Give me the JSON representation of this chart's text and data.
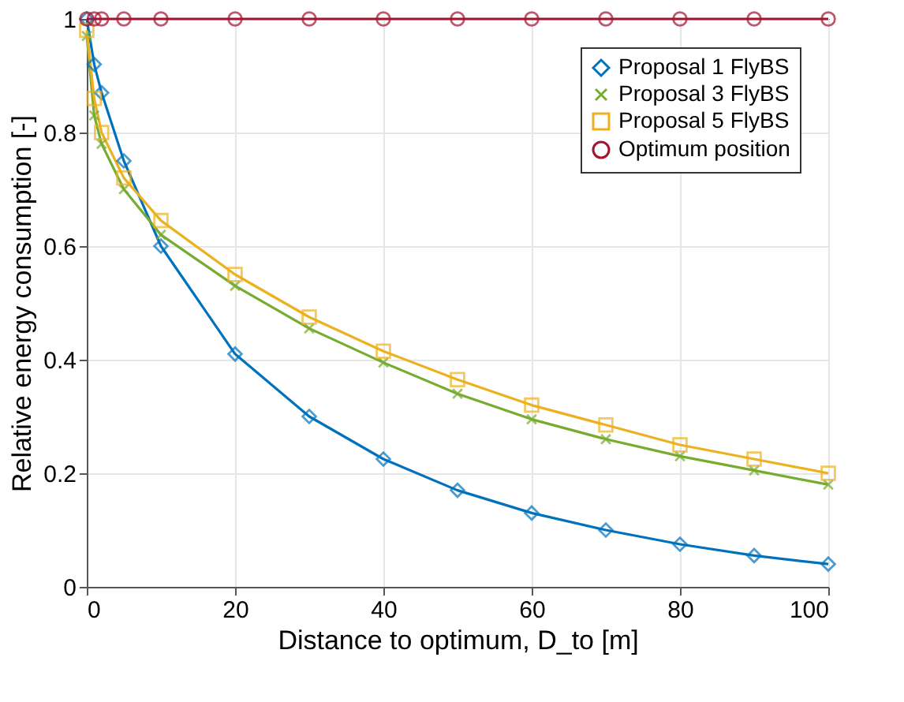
{
  "chart_data": {
    "type": "line",
    "xlabel": "Distance to optimum,  D_to [m]",
    "ylabel": "Relative energy consumption [-]",
    "x": [
      0,
      1,
      2,
      5,
      10,
      20,
      30,
      40,
      50,
      60,
      70,
      80,
      90,
      100
    ],
    "series": [
      {
        "name": "Proposal 1 FlyBS",
        "color": "#0072bd",
        "marker": "diamond",
        "values": [
          1.0,
          0.92,
          0.87,
          0.75,
          0.6,
          0.41,
          0.3,
          0.225,
          0.17,
          0.13,
          0.1,
          0.075,
          0.055,
          0.04
        ]
      },
      {
        "name": "Proposal 3 FlyBS",
        "color": "#77ac30",
        "marker": "cross",
        "values": [
          0.97,
          0.83,
          0.78,
          0.7,
          0.62,
          0.53,
          0.455,
          0.395,
          0.34,
          0.295,
          0.26,
          0.23,
          0.205,
          0.18
        ]
      },
      {
        "name": "Proposal 5 FlyBS",
        "color": "#edb120",
        "marker": "square",
        "values": [
          0.98,
          0.86,
          0.8,
          0.72,
          0.645,
          0.55,
          0.475,
          0.415,
          0.365,
          0.32,
          0.285,
          0.25,
          0.225,
          0.2
        ]
      },
      {
        "name": "Optimum position",
        "color": "#a2142f",
        "marker": "circle",
        "values": [
          1,
          1,
          1,
          1,
          1,
          1,
          1,
          1,
          1,
          1,
          1,
          1,
          1,
          1
        ]
      }
    ],
    "xlim": [
      0,
      100
    ],
    "ylim": [
      0,
      1
    ],
    "xticks": [
      0,
      20,
      40,
      60,
      80,
      100
    ],
    "yticks": [
      0,
      0.2,
      0.4,
      0.6,
      0.8,
      1
    ],
    "grid": true,
    "legend": "top right",
    "line_style": "solid"
  }
}
